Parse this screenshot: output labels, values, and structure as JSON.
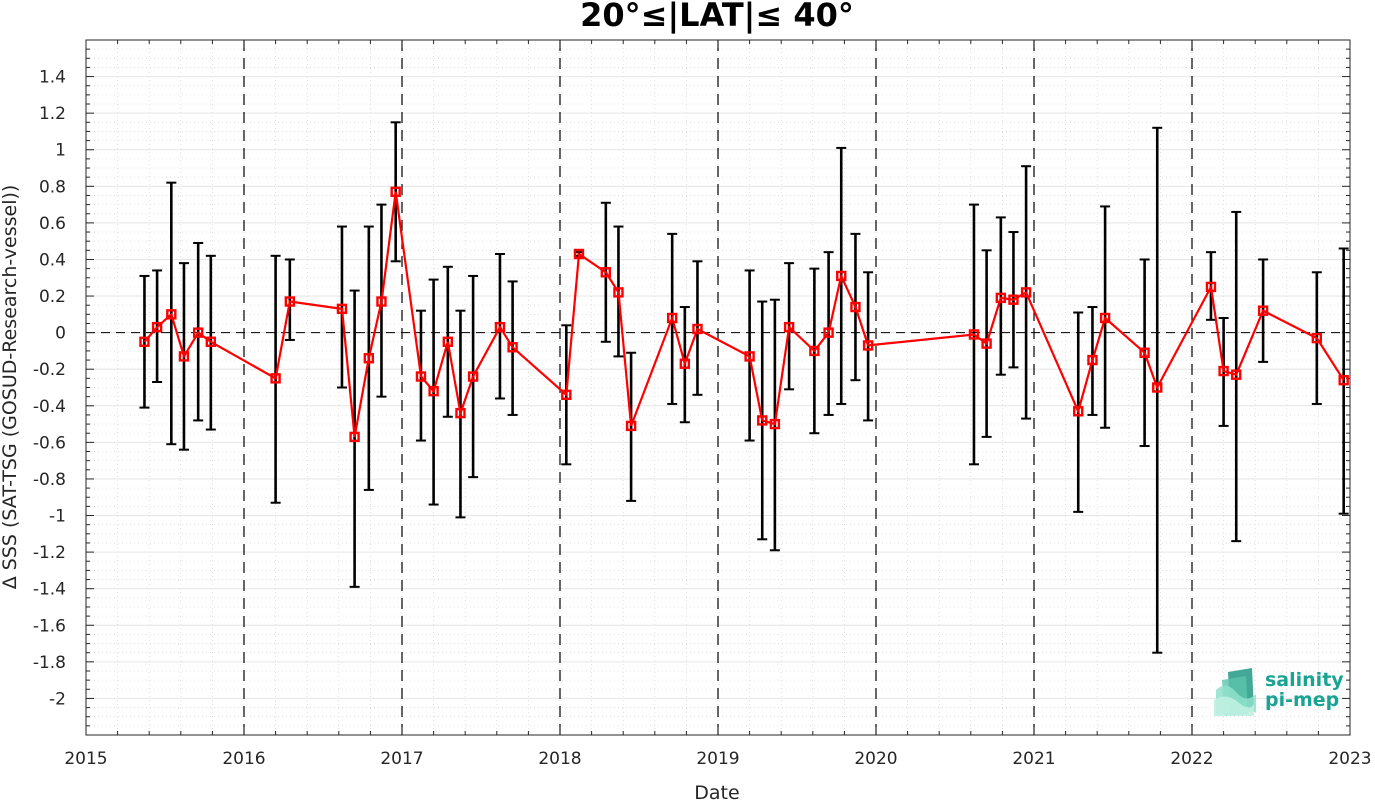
{
  "chart_data": {
    "type": "line",
    "title": "20°≤|LAT|≤ 40°",
    "xlabel": "Date",
    "ylabel": "Δ SSS (SAT-TSG (GOSUD-Research-vessel))",
    "xlim": [
      2015,
      2023
    ],
    "ylim": [
      -2.2,
      1.6
    ],
    "x_ticks": [
      "2015",
      "2016",
      "2017",
      "2018",
      "2019",
      "2020",
      "2021",
      "2022",
      "2023"
    ],
    "y_ticks": [
      "-2",
      "-1.8",
      "-1.6",
      "-1.4",
      "-1.2",
      "-1",
      "-0.8",
      "-0.6",
      "-0.4",
      "-0.2",
      "0",
      "0.2",
      "0.4",
      "0.6",
      "0.8",
      "1",
      "1.2",
      "1.4"
    ],
    "grid": true,
    "year_separators": "dashed vertical lines at each year",
    "zero_line": "dashed horizontal line at 0",
    "series": [
      {
        "color": "#ff0000",
        "marker": "square",
        "errorbar_color": "#000000",
        "x": [
          2015.37,
          2015.45,
          2015.54,
          2015.62,
          2015.71,
          2015.79,
          2016.2,
          2016.29,
          2016.62,
          2016.7,
          2016.79,
          2016.87,
          2016.96,
          2017.12,
          2017.2,
          2017.29,
          2017.37,
          2017.45,
          2017.62,
          2017.7,
          2018.04,
          2018.12,
          2018.29,
          2018.37,
          2018.45,
          2018.71,
          2018.79,
          2018.87,
          2019.2,
          2019.28,
          2019.36,
          2019.45,
          2019.61,
          2019.7,
          2019.78,
          2019.87,
          2019.95,
          2020.62,
          2020.7,
          2020.79,
          2020.87,
          2020.95,
          2021.28,
          2021.37,
          2021.45,
          2021.7,
          2021.78,
          2022.12,
          2022.2,
          2022.28,
          2022.45,
          2022.79,
          2022.96
        ],
        "y": [
          -0.05,
          0.03,
          0.1,
          -0.13,
          0.0,
          -0.05,
          -0.25,
          0.17,
          0.13,
          -0.57,
          -0.14,
          0.17,
          0.77,
          -0.24,
          -0.32,
          -0.05,
          -0.44,
          -0.24,
          0.03,
          -0.08,
          -0.34,
          0.43,
          0.33,
          0.22,
          -0.51,
          0.08,
          -0.17,
          0.02,
          -0.13,
          -0.48,
          -0.5,
          0.03,
          -0.1,
          0.0,
          0.31,
          0.14,
          -0.07,
          -0.01,
          -0.06,
          0.19,
          0.18,
          0.22,
          -0.43,
          -0.15,
          0.08,
          -0.11,
          -0.3,
          0.25,
          -0.21,
          -0.23,
          0.12,
          -0.03,
          -0.26
        ],
        "yerr_low": [
          -0.41,
          -0.27,
          -0.61,
          -0.64,
          -0.48,
          -0.53,
          -0.93,
          -0.04,
          -0.3,
          -1.39,
          -0.86,
          -0.35,
          0.39,
          -0.59,
          -0.94,
          -0.46,
          -1.01,
          -0.79,
          -0.36,
          -0.45,
          -0.72,
          0.42,
          -0.05,
          -0.13,
          -0.92,
          -0.39,
          -0.49,
          -0.34,
          -0.59,
          -1.13,
          -1.19,
          -0.31,
          -0.55,
          -0.45,
          -0.39,
          -0.26,
          -0.48,
          -0.72,
          -0.57,
          -0.23,
          -0.19,
          -0.47,
          -0.98,
          -0.45,
          -0.52,
          -0.62,
          -1.75,
          0.07,
          -0.51,
          -1.14,
          -0.16,
          -0.39,
          -0.99
        ],
        "yerr_high": [
          0.31,
          0.34,
          0.82,
          0.38,
          0.49,
          0.42,
          0.42,
          0.4,
          0.58,
          0.23,
          0.58,
          0.7,
          1.15,
          0.12,
          0.29,
          0.36,
          0.12,
          0.31,
          0.43,
          0.28,
          0.04,
          0.44,
          0.71,
          0.58,
          -0.11,
          0.54,
          0.14,
          0.39,
          0.34,
          0.17,
          0.18,
          0.38,
          0.35,
          0.44,
          1.01,
          0.54,
          0.33,
          0.7,
          0.45,
          0.63,
          0.55,
          0.91,
          0.11,
          0.14,
          0.69,
          0.4,
          1.12,
          0.44,
          0.08,
          0.66,
          0.4,
          0.33,
          0.46
        ]
      }
    ]
  },
  "logo": {
    "line1": "salinity",
    "line2": "pi-mep",
    "color": "#1aa394"
  }
}
